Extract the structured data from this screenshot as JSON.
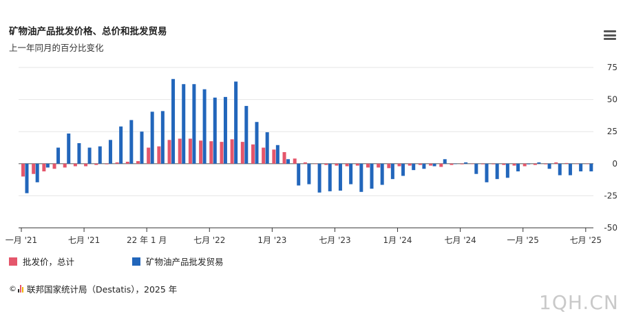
{
  "header": {
    "title": "矿物油产品批发价格、总价和批发贸易",
    "subtitle": "上一年同月的百分比变化"
  },
  "menu": {
    "icon": "hamburger-menu-icon"
  },
  "legend": {
    "items": [
      {
        "label": "批发价，总计",
        "color": "#e4566b"
      },
      {
        "label": "矿物油产品批发贸易",
        "color": "#2266bb"
      }
    ]
  },
  "source": {
    "text": "联邦国家统计局（Destatis），2025 年"
  },
  "watermark": {
    "text": "1QH.CN"
  },
  "chart_data": {
    "type": "bar",
    "title": "矿物油产品批发价格、总价和批发贸易",
    "subtitle": "上一年同月的百分比变化",
    "ylim": [
      -50,
      75
    ],
    "y_ticks": [
      75,
      50,
      25,
      0,
      -25,
      -50
    ],
    "grid": true,
    "legend_position": "bottom-left",
    "x_tick_labels": [
      {
        "label": "一月 '21",
        "index": 0
      },
      {
        "label": "七月 '21",
        "index": 6
      },
      {
        "label": "22 年 1 月",
        "index": 12
      },
      {
        "label": "七月 '22",
        "index": 18
      },
      {
        "label": "1月 '23",
        "index": 24
      },
      {
        "label": "七月 '23",
        "index": 30
      },
      {
        "label": "1月 '24",
        "index": 36
      },
      {
        "label": "七月 '24",
        "index": 42
      },
      {
        "label": "一月 '25",
        "index": 48
      },
      {
        "label": "七月 '25",
        "index": 54
      }
    ],
    "categories": [
      "2021-01",
      "2021-02",
      "2021-03",
      "2021-04",
      "2021-05",
      "2021-06",
      "2021-07",
      "2021-08",
      "2021-09",
      "2021-10",
      "2021-11",
      "2021-12",
      "2022-01",
      "2022-02",
      "2022-03",
      "2022-04",
      "2022-05",
      "2022-06",
      "2022-07",
      "2022-08",
      "2022-09",
      "2022-10",
      "2022-11",
      "2022-12",
      "2023-01",
      "2023-02",
      "2023-03",
      "2023-04",
      "2023-05",
      "2023-06",
      "2023-07",
      "2023-08",
      "2023-09",
      "2023-10",
      "2023-11",
      "2023-12",
      "2024-01",
      "2024-02",
      "2024-03",
      "2024-04",
      "2024-05",
      "2024-06",
      "2024-07",
      "2024-08",
      "2024-09",
      "2024-10",
      "2024-11",
      "2024-12",
      "2025-01",
      "2025-02",
      "2025-03",
      "2025-04",
      "2025-05",
      "2025-06",
      "2025-07"
    ],
    "series": [
      {
        "name": "批发价，总计",
        "color": "#e4566b",
        "values": [
          -10,
          -8,
          -6,
          -4,
          -3,
          -2,
          -2,
          -1,
          -0.5,
          1,
          1.5,
          2,
          12.5,
          13.5,
          18.5,
          19.5,
          19.5,
          18,
          17.5,
          17,
          19,
          17,
          15,
          12.5,
          11,
          9,
          4,
          1,
          0,
          -1,
          -1.5,
          -2,
          -1.5,
          -3,
          -3,
          -3.5,
          -2,
          -1.5,
          -1,
          -1.5,
          -2.5,
          -1,
          -0.5,
          0,
          -0.5,
          -0.5,
          -1,
          -1.5,
          -2,
          -1,
          -0.5,
          1,
          0.5,
          0,
          0
        ]
      },
      {
        "name": "矿物油产品批发贸易",
        "color": "#2266bb",
        "values": [
          -23,
          -14.5,
          -3,
          12.5,
          23.5,
          16,
          12.5,
          13.5,
          18.5,
          29,
          34,
          25,
          40.5,
          41,
          66,
          62,
          62,
          58,
          51.5,
          52,
          64,
          45,
          32.5,
          24.5,
          14.5,
          3.5,
          -17,
          -16,
          -22.5,
          -21.5,
          -21,
          -16,
          -22,
          -19.5,
          -16.5,
          -12,
          -9.5,
          -5,
          -4,
          -2,
          3.5,
          0,
          1,
          -8,
          -14.5,
          -12,
          -11,
          -6,
          -0.5,
          1,
          -4,
          -9,
          -9,
          -6,
          -6
        ]
      }
    ]
  }
}
